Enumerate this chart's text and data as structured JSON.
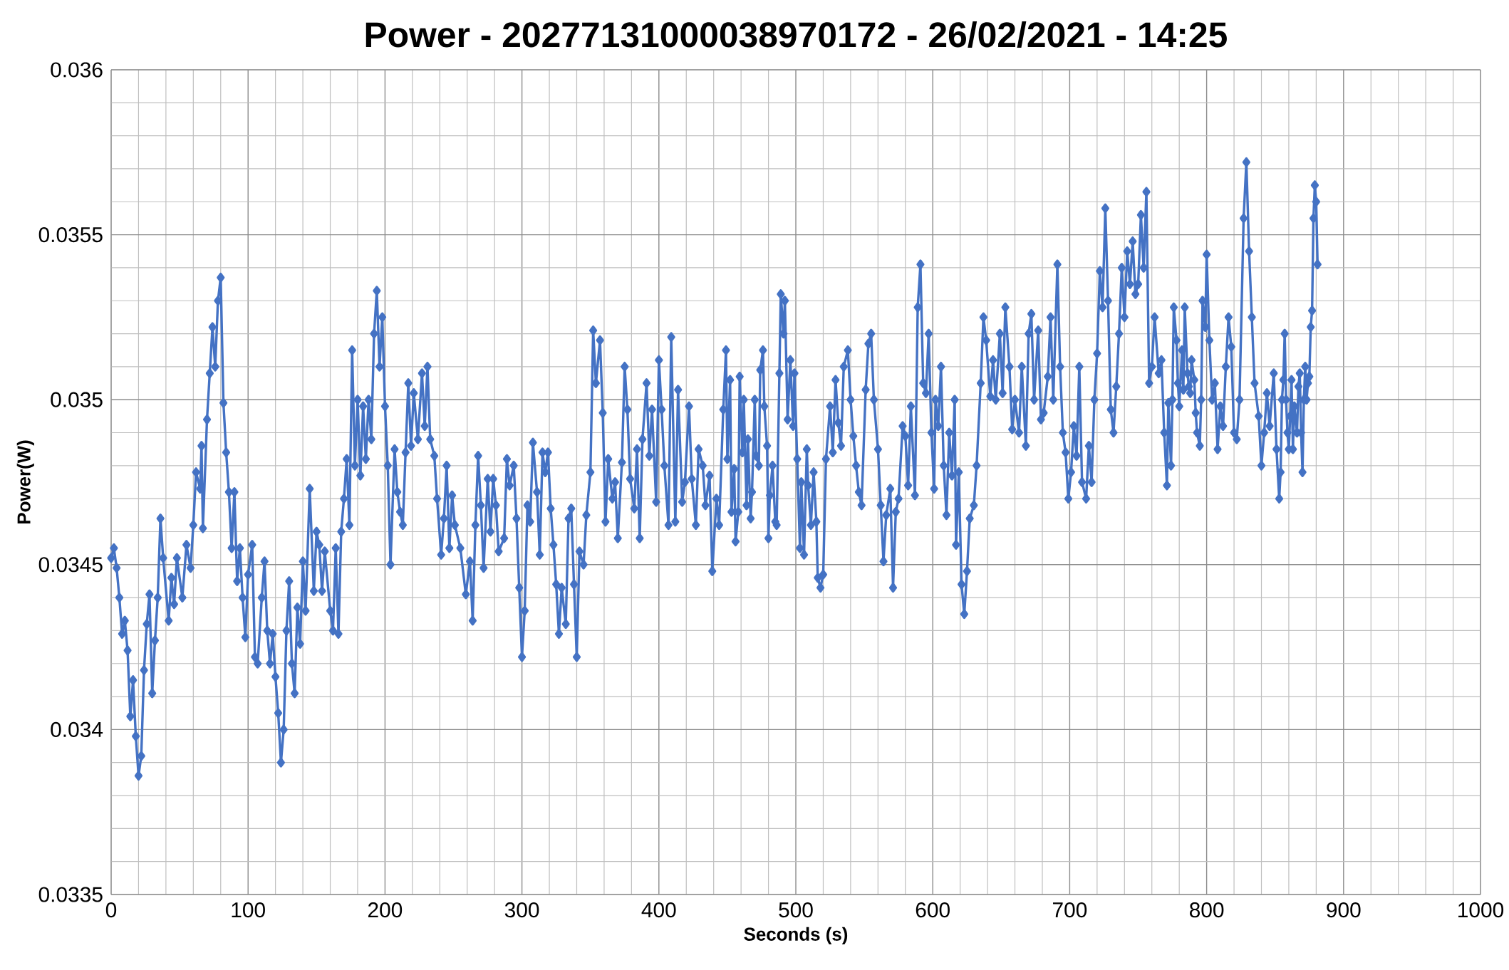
{
  "chart_data": {
    "type": "line",
    "title": "Power - 20277131000038970172 - 26/02/2021 - 14:25",
    "xlabel": "Seconds (s)",
    "ylabel": "Power(W)",
    "xlim": [
      0,
      1000
    ],
    "xticks": [
      0,
      100,
      200,
      300,
      400,
      500,
      600,
      700,
      800,
      900,
      1000
    ],
    "ylim": [
      0.0335,
      0.036
    ],
    "yticks": [
      0.0335,
      0.034,
      0.0345,
      0.035,
      0.0355,
      0.036
    ],
    "grid": true,
    "marker": "diamond",
    "line_style": "solid",
    "series": [
      {
        "color": "#4472c4",
        "x": [
          0,
          2,
          4,
          6,
          8,
          10,
          12,
          14,
          16,
          18,
          20,
          22,
          24,
          26,
          28,
          30,
          32,
          34,
          36,
          38,
          42,
          44,
          46,
          48,
          52,
          55,
          58,
          60,
          62,
          65,
          66,
          67,
          70,
          72,
          74,
          76,
          78,
          80,
          82,
          84,
          86,
          88,
          90,
          92,
          94,
          96,
          98,
          100,
          103,
          105,
          107,
          110,
          112,
          114,
          116,
          118,
          120,
          122,
          124,
          126,
          128,
          130,
          132,
          134,
          136,
          138,
          140,
          142,
          145,
          148,
          150,
          152,
          154,
          156,
          160,
          162,
          164,
          166,
          168,
          170,
          172,
          174,
          176,
          178,
          180,
          182,
          184,
          186,
          188,
          190,
          192,
          194,
          196,
          198,
          200,
          202,
          204,
          207,
          209,
          211,
          213,
          215,
          217,
          219,
          221,
          224,
          227,
          229,
          231,
          233,
          236,
          238,
          241,
          243,
          245,
          247,
          249,
          251,
          255,
          259,
          262,
          264,
          266,
          268,
          270,
          272,
          275,
          277,
          279,
          281,
          283,
          287,
          289,
          291,
          294,
          296,
          298,
          300,
          302,
          304,
          306,
          308,
          311,
          313,
          315,
          317,
          319,
          321,
          323,
          325,
          327,
          329,
          332,
          334,
          336,
          338,
          340,
          342,
          345,
          347,
          350,
          352,
          354,
          357,
          359,
          361,
          363,
          366,
          368,
          370,
          373,
          375,
          377,
          379,
          382,
          384,
          386,
          388,
          391,
          393,
          395,
          398,
          400,
          402,
          404,
          407,
          409,
          412,
          414,
          417,
          419,
          422,
          424,
          427,
          429,
          432,
          434,
          437,
          439,
          442,
          444,
          447,
          449,
          450,
          452,
          453,
          455,
          456,
          458,
          459,
          461,
          462,
          464,
          465,
          467,
          468,
          470,
          471,
          473,
          474,
          476,
          477,
          479,
          480,
          481,
          483,
          485,
          486,
          488,
          489,
          491,
          492,
          494,
          496,
          498,
          499,
          501,
          503,
          504,
          506,
          508,
          509,
          511,
          513,
          515,
          516,
          518,
          520,
          522,
          525,
          527,
          529,
          531,
          533,
          535,
          538,
          540,
          542,
          544,
          546,
          548,
          551,
          553,
          555,
          557,
          560,
          562,
          564,
          566,
          569,
          571,
          573,
          575,
          578,
          580,
          582,
          584,
          587,
          589,
          591,
          593,
          595,
          597,
          599,
          601,
          602,
          604,
          606,
          608,
          610,
          612,
          614,
          616,
          617,
          619,
          621,
          623,
          625,
          627,
          630,
          632,
          635,
          637,
          639,
          642,
          644,
          646,
          649,
          651,
          653,
          656,
          658,
          660,
          663,
          665,
          668,
          670,
          672,
          674,
          677,
          679,
          681,
          684,
          686,
          688,
          691,
          693,
          695,
          697,
          699,
          701,
          703,
          705,
          707,
          709,
          712,
          714,
          716,
          718,
          720,
          722,
          724,
          726,
          728,
          730,
          732,
          734,
          736,
          738,
          740,
          742,
          744,
          746,
          748,
          750,
          752,
          754,
          756,
          758,
          760,
          762,
          765,
          767,
          769,
          771,
          772,
          774,
          775,
          776,
          778,
          779,
          780,
          782,
          783,
          784,
          786,
          787,
          788,
          789,
          791,
          792,
          793,
          795,
          796,
          797,
          799,
          800,
          802,
          804,
          806,
          808,
          810,
          812,
          814,
          816,
          818,
          820,
          822,
          824,
          827,
          829,
          831,
          833,
          835,
          838,
          840,
          842,
          844,
          846,
          849,
          851,
          853,
          854,
          855,
          856,
          857,
          858,
          859,
          860,
          861,
          862,
          863,
          864,
          866,
          867,
          868,
          869,
          870,
          871,
          872,
          873,
          874,
          875,
          876,
          877,
          878,
          879,
          880,
          881
        ],
        "values": [
          0.03452,
          0.03455,
          0.03449,
          0.0344,
          0.03429,
          0.03433,
          0.03424,
          0.03404,
          0.03415,
          0.03398,
          0.03386,
          0.03392,
          0.03418,
          0.03432,
          0.03441,
          0.03411,
          0.03427,
          0.0344,
          0.03464,
          0.03452,
          0.03433,
          0.03446,
          0.03438,
          0.03452,
          0.0344,
          0.03456,
          0.03449,
          0.03462,
          0.03478,
          0.03473,
          0.03486,
          0.03461,
          0.03494,
          0.03508,
          0.03522,
          0.0351,
          0.0353,
          0.03537,
          0.03499,
          0.03484,
          0.03472,
          0.03455,
          0.03472,
          0.03445,
          0.03455,
          0.0344,
          0.03428,
          0.03447,
          0.03456,
          0.03422,
          0.0342,
          0.0344,
          0.03451,
          0.0343,
          0.0342,
          0.03429,
          0.03416,
          0.03405,
          0.0339,
          0.034,
          0.0343,
          0.03445,
          0.0342,
          0.03411,
          0.03437,
          0.03426,
          0.03451,
          0.03436,
          0.03473,
          0.03442,
          0.0346,
          0.03456,
          0.03442,
          0.03454,
          0.03436,
          0.0343,
          0.03455,
          0.03429,
          0.0346,
          0.0347,
          0.03482,
          0.03462,
          0.03515,
          0.0348,
          0.035,
          0.03477,
          0.03498,
          0.03482,
          0.035,
          0.03488,
          0.0352,
          0.03533,
          0.0351,
          0.03525,
          0.03498,
          0.0348,
          0.0345,
          0.03485,
          0.03472,
          0.03466,
          0.03462,
          0.03484,
          0.03505,
          0.03486,
          0.03502,
          0.03488,
          0.03508,
          0.03492,
          0.0351,
          0.03488,
          0.03483,
          0.0347,
          0.03453,
          0.03464,
          0.0348,
          0.03455,
          0.03471,
          0.03462,
          0.03455,
          0.03441,
          0.03451,
          0.03433,
          0.03462,
          0.03483,
          0.03468,
          0.03449,
          0.03476,
          0.0346,
          0.03476,
          0.03468,
          0.03454,
          0.03458,
          0.03482,
          0.03474,
          0.0348,
          0.03464,
          0.03443,
          0.03422,
          0.03436,
          0.03468,
          0.03463,
          0.03487,
          0.03472,
          0.03453,
          0.03484,
          0.03478,
          0.03484,
          0.03467,
          0.03456,
          0.03444,
          0.03429,
          0.03443,
          0.03432,
          0.03464,
          0.03467,
          0.03444,
          0.03422,
          0.03454,
          0.0345,
          0.03465,
          0.03478,
          0.03521,
          0.03505,
          0.03518,
          0.03496,
          0.03463,
          0.03482,
          0.0347,
          0.03475,
          0.03458,
          0.03481,
          0.0351,
          0.03497,
          0.03476,
          0.03467,
          0.03485,
          0.03458,
          0.03488,
          0.03505,
          0.03483,
          0.03497,
          0.03469,
          0.03512,
          0.03497,
          0.0348,
          0.03462,
          0.03519,
          0.03463,
          0.03503,
          0.03469,
          0.03475,
          0.03498,
          0.03476,
          0.03462,
          0.03485,
          0.0348,
          0.03468,
          0.03477,
          0.03448,
          0.0347,
          0.03462,
          0.03497,
          0.03515,
          0.03482,
          0.03506,
          0.03466,
          0.03479,
          0.03457,
          0.03466,
          0.03507,
          0.03484,
          0.035,
          0.03468,
          0.03488,
          0.03464,
          0.03472,
          0.035,
          0.03483,
          0.0348,
          0.03509,
          0.03515,
          0.03498,
          0.03486,
          0.03458,
          0.03471,
          0.0348,
          0.03463,
          0.03462,
          0.03508,
          0.03532,
          0.0352,
          0.0353,
          0.03494,
          0.03512,
          0.03492,
          0.03508,
          0.03482,
          0.03455,
          0.03475,
          0.03453,
          0.03485,
          0.03474,
          0.03462,
          0.03478,
          0.03463,
          0.03446,
          0.03443,
          0.03447,
          0.03482,
          0.03498,
          0.03484,
          0.03506,
          0.03493,
          0.03486,
          0.0351,
          0.03515,
          0.035,
          0.03489,
          0.0348,
          0.03472,
          0.03468,
          0.03503,
          0.03517,
          0.0352,
          0.035,
          0.03485,
          0.03468,
          0.03451,
          0.03465,
          0.03473,
          0.03443,
          0.03466,
          0.0347,
          0.03492,
          0.03489,
          0.03474,
          0.03498,
          0.03471,
          0.03528,
          0.03541,
          0.03505,
          0.03502,
          0.0352,
          0.0349,
          0.03473,
          0.035,
          0.03492,
          0.0351,
          0.0348,
          0.03465,
          0.0349,
          0.03477,
          0.035,
          0.03456,
          0.03478,
          0.03444,
          0.03435,
          0.03448,
          0.03464,
          0.03468,
          0.0348,
          0.03505,
          0.03525,
          0.03518,
          0.03501,
          0.03512,
          0.035,
          0.0352,
          0.03502,
          0.03528,
          0.0351,
          0.03491,
          0.035,
          0.0349,
          0.0351,
          0.03486,
          0.0352,
          0.03526,
          0.035,
          0.03521,
          0.03494,
          0.03496,
          0.03507,
          0.03525,
          0.035,
          0.03541,
          0.0351,
          0.0349,
          0.03484,
          0.0347,
          0.03478,
          0.03492,
          0.03483,
          0.0351,
          0.03475,
          0.0347,
          0.03486,
          0.03475,
          0.035,
          0.03514,
          0.03539,
          0.03528,
          0.03558,
          0.0353,
          0.03497,
          0.0349,
          0.03504,
          0.0352,
          0.0354,
          0.03525,
          0.03545,
          0.03535,
          0.03548,
          0.03532,
          0.03535,
          0.03556,
          0.0354,
          0.03563,
          0.03505,
          0.0351,
          0.03525,
          0.03508,
          0.03512,
          0.0349,
          0.03474,
          0.03499,
          0.0348,
          0.035,
          0.03528,
          0.03518,
          0.03505,
          0.03498,
          0.03515,
          0.03503,
          0.03528,
          0.03508,
          0.03504,
          0.03502,
          0.03512,
          0.03506,
          0.03496,
          0.0349,
          0.03486,
          0.035,
          0.0353,
          0.03522,
          0.03544,
          0.03518,
          0.035,
          0.03505,
          0.03485,
          0.03498,
          0.03492,
          0.0351,
          0.03525,
          0.03516,
          0.0349,
          0.03488,
          0.035,
          0.03555,
          0.03572,
          0.03545,
          0.03525,
          0.03505,
          0.03495,
          0.0348,
          0.0349,
          0.03502,
          0.03492,
          0.03508,
          0.03485,
          0.0347,
          0.03478,
          0.035,
          0.03506,
          0.0352,
          0.035,
          0.0349,
          0.03485,
          0.03495,
          0.03506,
          0.03485,
          0.03498,
          0.0349,
          0.03504,
          0.03508,
          0.0349,
          0.03478,
          0.035,
          0.0351,
          0.035,
          0.03505,
          0.03507,
          0.03522,
          0.03527,
          0.03555,
          0.03565,
          0.0356,
          0.03541
        ]
      }
    ]
  }
}
